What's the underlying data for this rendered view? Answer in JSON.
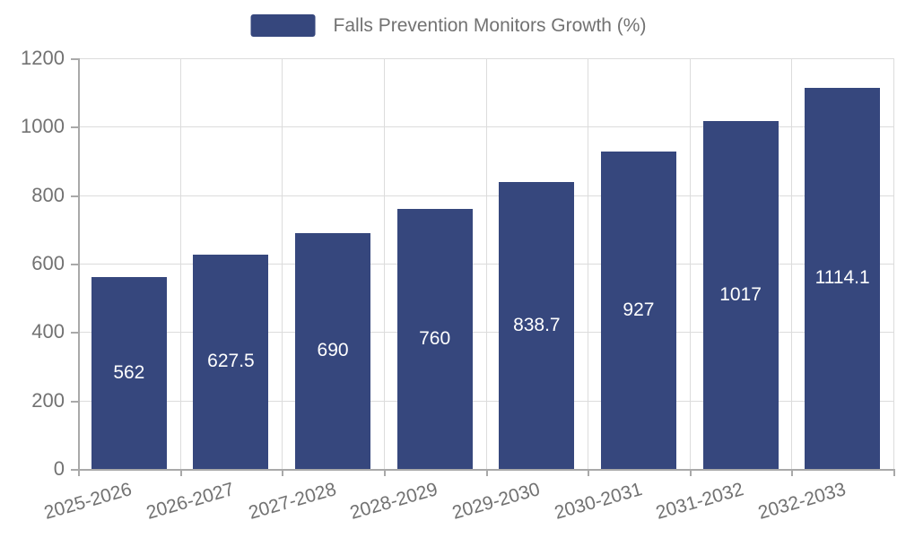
{
  "legend": {
    "label": "Falls Prevention Monitors Growth (%)"
  },
  "colors": {
    "bar": "#36477d",
    "grid": "#dcdcdc",
    "axis": "#a9a9a9",
    "tick_text": "#727272",
    "value_label_text": "#ffffff",
    "background": "#ffffff"
  },
  "chart_data": {
    "type": "bar",
    "series_name": "Falls Prevention Monitors Growth (%)",
    "categories": [
      "2025-2026",
      "2026-2027",
      "2027-2028",
      "2028-2029",
      "2029-2030",
      "2030-2031",
      "2031-2032",
      "2032-2033"
    ],
    "values": [
      562,
      627.5,
      690,
      760,
      838.7,
      927,
      1017,
      1114.1
    ],
    "value_labels": [
      "562",
      "627.5",
      "690",
      "760",
      "838.7",
      "927",
      "1017",
      "1114.1"
    ],
    "xlabel": "",
    "ylabel": "",
    "ylim": [
      0,
      1200
    ],
    "yticks": [
      0,
      200,
      400,
      600,
      800,
      1000,
      1200
    ],
    "grid": true,
    "legend_position": "top",
    "value_labels_position": "inside-center",
    "x_label_rotation_deg": 16
  }
}
